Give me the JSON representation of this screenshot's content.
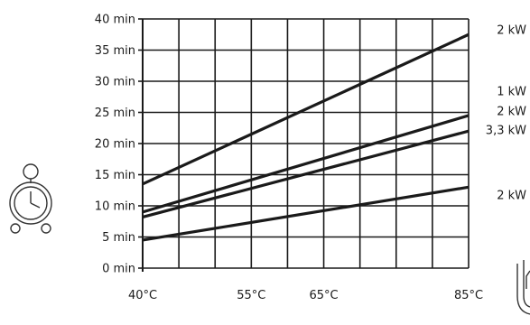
{
  "chart_data": {
    "type": "line",
    "title": "",
    "xlabel": "",
    "ylabel": "",
    "grid": true,
    "xlim": [
      40,
      85
    ],
    "ylim": [
      0,
      40
    ],
    "x_ticks": [
      40,
      55,
      65,
      85
    ],
    "x_tick_labels": [
      "40°C",
      "55°C",
      "65°C",
      "85°C"
    ],
    "y_ticks": [
      0,
      5,
      10,
      15,
      20,
      25,
      30,
      35,
      40
    ],
    "y_tick_labels": [
      "0 min",
      "5 min",
      "10 min",
      "15 min",
      "20 min",
      "25 min",
      "30 min",
      "35 min",
      "40 min"
    ],
    "series": [
      {
        "name": "2 kW",
        "x": [
          40,
          85
        ],
        "y": [
          13.5,
          37.5
        ]
      },
      {
        "name": "1 kW",
        "x": [
          40,
          85
        ],
        "y": [
          9,
          24.5
        ]
      },
      {
        "name": "2 kW",
        "x": [
          40,
          85
        ],
        "y": [
          8.2,
          22
        ]
      },
      {
        "name": "3,3 kW",
        "x": [
          40,
          85
        ],
        "y": [
          4.5,
          13
        ]
      },
      {
        "name": "2 kW",
        "x": [],
        "y": []
      }
    ],
    "line_color": "#1a1a1a",
    "grid_color": "#1a1a1a"
  },
  "icons": {
    "left": "alarm-clock-icon",
    "right": "water-tank-icon"
  }
}
